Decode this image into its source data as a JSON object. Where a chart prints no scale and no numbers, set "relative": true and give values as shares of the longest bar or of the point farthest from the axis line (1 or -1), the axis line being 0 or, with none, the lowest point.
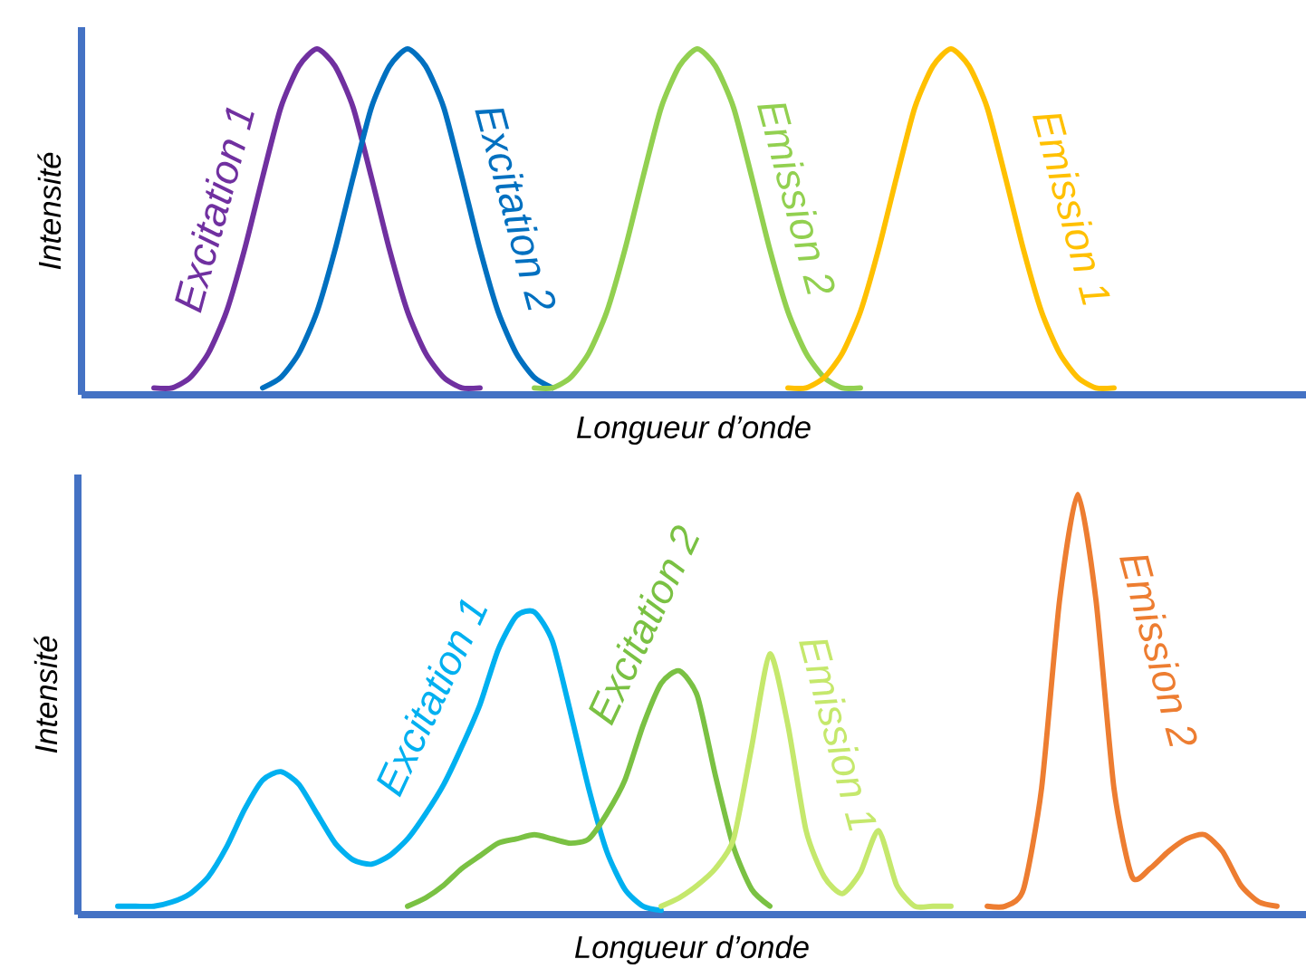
{
  "chart_data": [
    {
      "type": "line",
      "relative": true,
      "xlabel": "Longueur d’onde",
      "ylabel": "Intensité",
      "categories": [
        null,
        null,
        null,
        null,
        null,
        null,
        null,
        null,
        null,
        null,
        null,
        null,
        null,
        null,
        null,
        null,
        null,
        null,
        null,
        null,
        null,
        null,
        null,
        null,
        null,
        null,
        null,
        null,
        null,
        null,
        null,
        null,
        null,
        null,
        null,
        null,
        null,
        null,
        null,
        null,
        null,
        null,
        null,
        null,
        null,
        null,
        null,
        null,
        null,
        null,
        null,
        null,
        null,
        null,
        null,
        null,
        null,
        null,
        null,
        null,
        null,
        null,
        null,
        null,
        null,
        null,
        null,
        null
      ],
      "series": [
        {
          "name": "Excitation 1",
          "color": "#7030a0",
          "values": [
            null,
            null,
            null,
            null,
            0.02,
            0.02,
            0.05,
            0.12,
            0.24,
            0.42,
            0.63,
            0.83,
            0.95,
            1,
            0.95,
            0.83,
            0.63,
            0.42,
            0.24,
            0.12,
            0.05,
            0.02,
            0.02,
            null,
            null,
            null,
            null,
            null,
            null,
            null,
            null,
            null,
            null,
            null,
            null,
            null,
            null,
            null,
            null,
            null,
            null,
            null,
            null,
            null,
            null,
            null,
            null,
            null,
            null,
            null,
            null,
            null,
            null,
            null,
            null,
            null,
            null,
            null,
            null,
            null,
            null,
            null,
            null,
            null,
            null,
            null,
            null,
            null
          ]
        },
        {
          "name": "Excitation 2",
          "color": "#0070c0",
          "values": [
            null,
            null,
            null,
            null,
            null,
            null,
            null,
            null,
            null,
            null,
            0.02,
            0.05,
            0.12,
            0.24,
            0.42,
            0.63,
            0.83,
            0.95,
            1,
            0.95,
            0.83,
            0.63,
            0.42,
            0.24,
            0.12,
            0.05,
            0.02,
            null,
            null,
            null,
            null,
            null,
            null,
            null,
            null,
            null,
            null,
            null,
            null,
            null,
            null,
            null,
            null,
            null,
            null,
            null,
            null,
            null,
            null,
            null,
            null,
            null,
            null,
            null,
            null,
            null,
            null,
            null,
            null,
            null,
            null,
            null,
            null,
            null,
            null,
            null,
            null,
            null
          ]
        },
        {
          "name": "Emission 2",
          "color": "#92d050",
          "values": [
            null,
            null,
            null,
            null,
            null,
            null,
            null,
            null,
            null,
            null,
            null,
            null,
            null,
            null,
            null,
            null,
            null,
            null,
            null,
            null,
            null,
            null,
            null,
            null,
            null,
            0.02,
            0.02,
            0.05,
            0.12,
            0.24,
            0.42,
            0.63,
            0.83,
            0.95,
            1,
            0.95,
            0.83,
            0.63,
            0.42,
            0.24,
            0.12,
            0.05,
            0.02,
            0.02,
            null,
            null,
            null,
            null,
            null,
            null,
            null,
            null,
            null,
            null,
            null,
            null,
            null,
            null,
            null,
            null,
            null,
            null,
            null,
            null,
            null,
            null,
            null,
            null
          ]
        },
        {
          "name": "Emission 1",
          "color": "#ffc000",
          "values": [
            null,
            null,
            null,
            null,
            null,
            null,
            null,
            null,
            null,
            null,
            null,
            null,
            null,
            null,
            null,
            null,
            null,
            null,
            null,
            null,
            null,
            null,
            null,
            null,
            null,
            null,
            null,
            null,
            null,
            null,
            null,
            null,
            null,
            null,
            null,
            null,
            null,
            null,
            null,
            0.02,
            0.02,
            0.05,
            0.12,
            0.24,
            0.42,
            0.63,
            0.83,
            0.95,
            1,
            0.95,
            0.83,
            0.63,
            0.42,
            0.24,
            0.12,
            0.05,
            0.02,
            0.02,
            null,
            null,
            null,
            null,
            null,
            null,
            null,
            null,
            null,
            null
          ]
        }
      ]
    },
    {
      "type": "line",
      "relative": true,
      "xlabel": "Longueur d’onde",
      "ylabel": "Intensité",
      "categories": [
        null,
        null,
        null,
        null,
        null,
        null,
        null,
        null,
        null,
        null,
        null,
        null,
        null,
        null,
        null,
        null,
        null,
        null,
        null,
        null,
        null,
        null,
        null,
        null,
        null,
        null,
        null,
        null,
        null,
        null,
        null,
        null,
        null,
        null,
        null,
        null,
        null,
        null,
        null,
        null,
        null,
        null,
        null,
        null,
        null,
        null,
        null,
        null,
        null,
        null,
        null,
        null,
        null,
        null,
        null,
        null,
        null,
        null,
        null,
        null,
        null,
        null,
        null,
        null,
        null,
        null,
        null,
        null
      ],
      "series": [
        {
          "name": "Excitation 1",
          "color": "#00b0f0",
          "values": [
            null,
            null,
            0.02,
            0.02,
            0.02,
            0.03,
            0.05,
            0.09,
            0.16,
            0.25,
            0.32,
            0.34,
            0.31,
            0.24,
            0.17,
            0.13,
            0.12,
            0.14,
            0.18,
            0.24,
            0.31,
            0.4,
            0.5,
            0.63,
            0.71,
            0.72,
            0.65,
            0.48,
            0.3,
            0.15,
            0.06,
            0.02,
            0.01,
            null,
            null,
            null,
            null,
            null,
            null,
            null,
            null,
            null,
            null,
            null,
            null,
            null,
            null,
            null,
            null,
            null,
            null,
            null,
            null,
            null,
            null,
            null,
            null,
            null,
            null,
            null,
            null,
            null,
            null,
            null,
            null,
            null,
            null,
            null
          ]
        },
        {
          "name": "Excitation 2",
          "color": "#7ac143",
          "values": [
            null,
            null,
            null,
            null,
            null,
            null,
            null,
            null,
            null,
            null,
            null,
            null,
            null,
            null,
            null,
            null,
            null,
            null,
            0.02,
            0.04,
            0.07,
            0.11,
            0.14,
            0.17,
            0.18,
            0.19,
            0.18,
            0.17,
            0.18,
            0.24,
            0.32,
            0.45,
            0.55,
            0.58,
            0.52,
            0.33,
            0.16,
            0.06,
            0.02,
            null,
            null,
            null,
            null,
            null,
            null,
            null,
            null,
            null,
            null,
            null,
            null,
            null,
            null,
            null,
            null,
            null,
            null,
            null,
            null,
            null,
            null,
            null,
            null,
            null,
            null,
            null,
            null,
            null
          ]
        },
        {
          "name": "Emission 1",
          "color": "#c5e86c",
          "values": [
            null,
            null,
            null,
            null,
            null,
            null,
            null,
            null,
            null,
            null,
            null,
            null,
            null,
            null,
            null,
            null,
            null,
            null,
            null,
            null,
            null,
            null,
            null,
            null,
            null,
            null,
            null,
            null,
            null,
            null,
            null,
            null,
            0.02,
            0.04,
            0.07,
            0.11,
            0.18,
            0.4,
            0.62,
            0.45,
            0.2,
            0.09,
            0.05,
            0.1,
            0.2,
            0.07,
            0.02,
            0.02,
            0.02,
            null,
            null,
            null,
            null,
            null,
            null,
            null,
            null,
            null,
            null,
            null,
            null,
            null,
            null,
            null,
            null,
            null,
            null,
            null
          ]
        },
        {
          "name": "Emission 2",
          "color": "#ed7d31",
          "values": [
            null,
            null,
            null,
            null,
            null,
            null,
            null,
            null,
            null,
            null,
            null,
            null,
            null,
            null,
            null,
            null,
            null,
            null,
            null,
            null,
            null,
            null,
            null,
            null,
            null,
            null,
            null,
            null,
            null,
            null,
            null,
            null,
            null,
            null,
            null,
            null,
            null,
            null,
            null,
            null,
            null,
            null,
            null,
            null,
            null,
            null,
            null,
            null,
            null,
            null,
            0.02,
            0.02,
            0.06,
            0.3,
            0.75,
            1,
            0.75,
            0.3,
            0.09,
            0.11,
            0.15,
            0.18,
            0.19,
            0.15,
            0.07,
            0.03,
            0.02,
            null
          ]
        }
      ]
    }
  ]
}
